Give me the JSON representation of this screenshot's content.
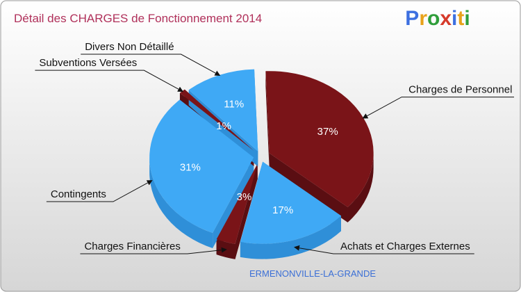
{
  "chart_data": {
    "type": "pie",
    "title": "Détail des CHARGES de Fonctionnement 2014",
    "subtitle": "ERMENONVILLE-LA-GRANDE",
    "slices": [
      {
        "label": "Charges de Personnel",
        "value": 37,
        "value_label": "37%",
        "color": "#7a1418"
      },
      {
        "label": "Achats et Charges Externes",
        "value": 17,
        "value_label": "17%",
        "color": "#3fa9f5"
      },
      {
        "label": "Charges Financières",
        "value": 3,
        "value_label": "3%",
        "color": "#7a1418"
      },
      {
        "label": "Contingents",
        "value": 31,
        "value_label": "31%",
        "color": "#3fa9f5"
      },
      {
        "label": "Subventions Versées",
        "value": 1,
        "value_label": "1%",
        "color": "#7a1418"
      },
      {
        "label": "Divers Non Détaillé",
        "value": 11,
        "value_label": "11%",
        "color": "#3fa9f5"
      }
    ]
  },
  "logo": {
    "text": "Proxiti",
    "letters": [
      {
        "ch": "P",
        "color": "#3c6fe0"
      },
      {
        "ch": "r",
        "color": "#e8a21a"
      },
      {
        "ch": "o",
        "color": "#2f9e3a"
      },
      {
        "ch": "x",
        "color": "#d63a2b"
      },
      {
        "ch": "i",
        "color": "#3c6fe0"
      },
      {
        "ch": "t",
        "color": "#e8a21a"
      },
      {
        "ch": "i",
        "color": "#2f9e3a"
      }
    ]
  },
  "colors": {
    "background_top": "#ffffff",
    "background_bottom": "#d6d6d6",
    "dark_red": "#7a1418",
    "dark_red_side": "#5a0e12",
    "blue": "#3fa9f5",
    "blue_side": "#2f8fd8"
  }
}
